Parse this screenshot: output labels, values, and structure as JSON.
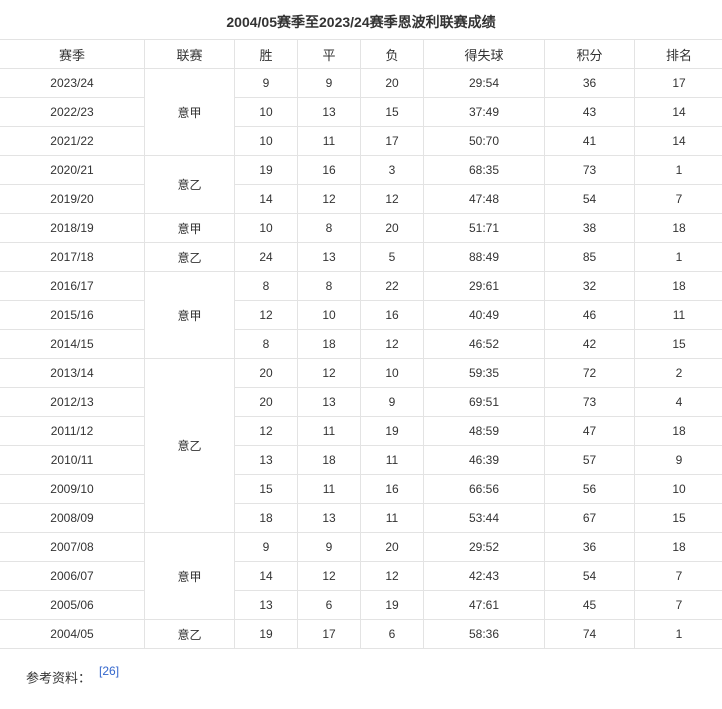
{
  "title": "2004/05赛季至2023/24赛季恩波利联赛成绩",
  "columns": [
    "赛季",
    "联赛",
    "胜",
    "平",
    "负",
    "得失球",
    "积分",
    "排名"
  ],
  "league_groups": [
    {
      "league": "意甲",
      "rows": 3
    },
    {
      "league": "意乙",
      "rows": 2
    },
    {
      "league": "意甲",
      "rows": 1
    },
    {
      "league": "意乙",
      "rows": 1
    },
    {
      "league": "意甲",
      "rows": 3
    },
    {
      "league": "意乙",
      "rows": 6
    },
    {
      "league": "意甲",
      "rows": 3
    },
    {
      "league": "意乙",
      "rows": 1
    }
  ],
  "rows": [
    [
      "2023/24",
      "9",
      "9",
      "20",
      "29:54",
      "36",
      "17"
    ],
    [
      "2022/23",
      "10",
      "13",
      "15",
      "37:49",
      "43",
      "14"
    ],
    [
      "2021/22",
      "10",
      "11",
      "17",
      "50:70",
      "41",
      "14"
    ],
    [
      "2020/21",
      "19",
      "16",
      "3",
      "68:35",
      "73",
      "1"
    ],
    [
      "2019/20",
      "14",
      "12",
      "12",
      "47:48",
      "54",
      "7"
    ],
    [
      "2018/19",
      "10",
      "8",
      "20",
      "51:71",
      "38",
      "18"
    ],
    [
      "2017/18",
      "24",
      "13",
      "5",
      "88:49",
      "85",
      "1"
    ],
    [
      "2016/17",
      "8",
      "8",
      "22",
      "29:61",
      "32",
      "18"
    ],
    [
      "2015/16",
      "12",
      "10",
      "16",
      "40:49",
      "46",
      "11"
    ],
    [
      "2014/15",
      "8",
      "18",
      "12",
      "46:52",
      "42",
      "15"
    ],
    [
      "2013/14",
      "20",
      "12",
      "10",
      "59:35",
      "72",
      "2"
    ],
    [
      "2012/13",
      "20",
      "13",
      "9",
      "69:51",
      "73",
      "4"
    ],
    [
      "2011/12",
      "12",
      "11",
      "19",
      "48:59",
      "47",
      "18"
    ],
    [
      "2010/11",
      "13",
      "18",
      "11",
      "46:39",
      "57",
      "9"
    ],
    [
      "2009/10",
      "15",
      "11",
      "16",
      "66:56",
      "56",
      "10"
    ],
    [
      "2008/09",
      "18",
      "13",
      "11",
      "53:44",
      "67",
      "15"
    ],
    [
      "2007/08",
      "9",
      "9",
      "20",
      "29:52",
      "36",
      "18"
    ],
    [
      "2006/07",
      "14",
      "12",
      "12",
      "42:43",
      "54",
      "7"
    ],
    [
      "2005/06",
      "13",
      "6",
      "19",
      "47:61",
      "45",
      "7"
    ],
    [
      "2004/05",
      "19",
      "17",
      "6",
      "58:36",
      "74",
      "1"
    ]
  ],
  "footer": {
    "label": "参考资料：",
    "ref": "[26]"
  }
}
